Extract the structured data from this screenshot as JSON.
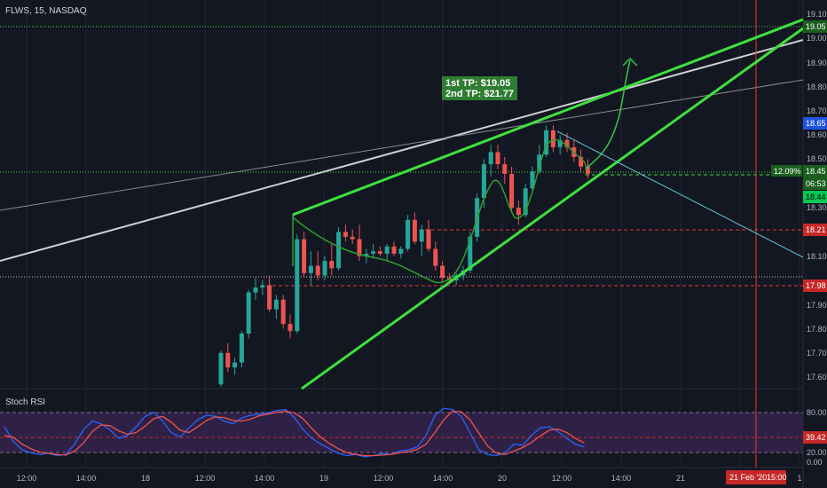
{
  "header": {
    "symbol_line": "FLWS, 15, NASDAQ"
  },
  "colors": {
    "background": "#131722",
    "grid": "#1f2532",
    "candle_up": "#26a69a",
    "candle_down": "#ef5350",
    "trendline_green": "#3ee03e",
    "channel_white": "#cfcfcf",
    "target_line": "#5fc6d8",
    "red_line": "#e53935",
    "rsi_k": "#2962ff",
    "rsi_d": "#ef5350",
    "rsi_band": "#3a2451"
  },
  "annotation": {
    "line1": "1st TP: $19.05",
    "line2": "2nd TP: $21.77",
    "color": "#2e7d32"
  },
  "price_axis": {
    "ticks": [
      "19.10",
      "19.00",
      "18.90",
      "18.80",
      "18.70",
      "18.60",
      "18.50",
      "18.30",
      "18.10",
      "17.90",
      "17.80",
      "17.70",
      "17.60"
    ],
    "labels": [
      {
        "text": "19.05",
        "bg": "#1b5e20",
        "fg": "#ffffff"
      },
      {
        "text": "18.65",
        "bg": "#1e54e0",
        "fg": "#ffffff"
      },
      {
        "text": "18.45",
        "bg": "#1b5e20",
        "fg": "#ffffff"
      },
      {
        "text": "06:53",
        "bg": "#1b5e20",
        "fg": "#ffffff"
      },
      {
        "text": "18.44",
        "bg": "#00c853",
        "fg": "#000000"
      },
      {
        "text": "18.21",
        "bg": "#c62828",
        "fg": "#ffffff"
      },
      {
        "text": "17.98",
        "bg": "#c62828",
        "fg": "#ffffff"
      }
    ],
    "percent_label": "12.09%"
  },
  "time_axis": {
    "ticks": [
      "12:00",
      "14:00",
      "18",
      "12:00",
      "14:00",
      "19",
      "12:00",
      "14:00",
      "20",
      "12:00",
      "14:00",
      "21",
      "12:00",
      "1"
    ],
    "cursor_date": "21 Feb '20",
    "cursor_time": "15:00"
  },
  "rsi": {
    "title": "Stoch RSI",
    "ticks": [
      "80.00",
      "20.00",
      "0.00"
    ],
    "current": "39.42",
    "upper": 80,
    "lower": 20
  },
  "chart_data": {
    "type": "candlestick",
    "ylim": [
      17.55,
      19.12
    ],
    "candles": [
      [
        17.57,
        17.71,
        17.56,
        17.7
      ],
      [
        17.7,
        17.74,
        17.62,
        17.64
      ],
      [
        17.64,
        17.68,
        17.61,
        17.66
      ],
      [
        17.66,
        17.79,
        17.64,
        17.78
      ],
      [
        17.78,
        17.96,
        17.76,
        17.95
      ],
      [
        17.95,
        18.01,
        17.92,
        17.97
      ],
      [
        17.97,
        18.0,
        17.94,
        17.98
      ],
      [
        17.98,
        18.02,
        17.87,
        17.88
      ],
      [
        17.88,
        17.94,
        17.84,
        17.92
      ],
      [
        17.92,
        17.94,
        17.8,
        17.82
      ],
      [
        17.82,
        17.86,
        17.76,
        17.79
      ],
      [
        17.79,
        18.19,
        17.78,
        18.17
      ],
      [
        18.17,
        18.2,
        18.01,
        18.03
      ],
      [
        18.03,
        18.12,
        17.98,
        18.06
      ],
      [
        18.06,
        18.12,
        18.0,
        18.02
      ],
      [
        18.02,
        18.1,
        18.0,
        18.08
      ],
      [
        18.08,
        18.15,
        18.02,
        18.05
      ],
      [
        18.05,
        18.22,
        18.04,
        18.2
      ],
      [
        18.2,
        18.23,
        18.16,
        18.18
      ],
      [
        18.18,
        18.21,
        18.15,
        18.17
      ],
      [
        18.17,
        18.23,
        18.08,
        18.1
      ],
      [
        18.1,
        18.13,
        18.07,
        18.11
      ],
      [
        18.11,
        18.15,
        18.09,
        18.12
      ],
      [
        18.12,
        18.14,
        18.1,
        18.11
      ],
      [
        18.11,
        18.15,
        18.08,
        18.14
      ],
      [
        18.14,
        18.16,
        18.1,
        18.11
      ],
      [
        18.11,
        18.14,
        18.09,
        18.13
      ],
      [
        18.13,
        18.27,
        18.12,
        18.25
      ],
      [
        18.25,
        18.28,
        18.15,
        18.16
      ],
      [
        18.16,
        18.23,
        18.1,
        18.21
      ],
      [
        18.21,
        18.25,
        18.12,
        18.13
      ],
      [
        18.13,
        18.16,
        18.04,
        18.06
      ],
      [
        18.06,
        18.08,
        17.99,
        18.01
      ],
      [
        18.01,
        18.03,
        17.99,
        18.0
      ],
      [
        18.0,
        18.03,
        17.98,
        18.02
      ],
      [
        18.02,
        18.06,
        18.0,
        18.04
      ],
      [
        18.04,
        18.2,
        18.03,
        18.18
      ],
      [
        18.18,
        18.36,
        18.16,
        18.34
      ],
      [
        18.34,
        18.5,
        18.3,
        18.48
      ],
      [
        18.48,
        18.56,
        18.43,
        18.53
      ],
      [
        18.53,
        18.56,
        18.46,
        18.48
      ],
      [
        18.48,
        18.51,
        18.4,
        18.44
      ],
      [
        18.44,
        18.47,
        18.28,
        18.3
      ],
      [
        18.3,
        18.33,
        18.23,
        18.27
      ],
      [
        18.27,
        18.4,
        18.26,
        18.38
      ],
      [
        18.38,
        18.47,
        18.37,
        18.45
      ],
      [
        18.45,
        18.56,
        18.44,
        18.52
      ],
      [
        18.52,
        18.64,
        18.51,
        18.62
      ],
      [
        18.62,
        18.64,
        18.53,
        18.55
      ],
      [
        18.55,
        18.6,
        18.52,
        18.58
      ],
      [
        18.58,
        18.61,
        18.53,
        18.55
      ],
      [
        18.55,
        18.58,
        18.49,
        18.51
      ],
      [
        18.51,
        18.54,
        18.45,
        18.47
      ],
      [
        18.47,
        18.5,
        18.42,
        18.44
      ]
    ],
    "levels": [
      19.05,
      18.45,
      18.21,
      17.98
    ],
    "rsi_k": [
      60,
      35,
      20,
      15,
      12,
      14,
      10,
      12,
      30,
      55,
      70,
      65,
      55,
      40,
      45,
      60,
      78,
      85,
      70,
      50,
      42,
      58,
      72,
      80,
      78,
      70,
      65,
      75,
      80,
      82,
      84,
      88,
      90,
      76,
      55,
      40,
      30,
      22,
      14,
      10,
      12,
      8,
      10,
      14,
      12,
      18,
      20,
      25,
      45,
      80,
      92,
      90,
      78,
      50,
      20,
      12,
      10,
      15,
      30,
      28,
      45,
      58,
      60,
      52,
      40,
      30,
      25
    ],
    "rsi_d": [
      45,
      42,
      30,
      22,
      16,
      14,
      12,
      11,
      18,
      32,
      52,
      63,
      62,
      53,
      47,
      50,
      61,
      74,
      78,
      68,
      54,
      50,
      60,
      71,
      77,
      76,
      71,
      70,
      73,
      79,
      82,
      85,
      87,
      84,
      74,
      57,
      42,
      31,
      22,
      15,
      12,
      10,
      10,
      11,
      12,
      15,
      17,
      21,
      30,
      50,
      72,
      87,
      86,
      72,
      49,
      27,
      14,
      12,
      18,
      24,
      33,
      44,
      54,
      56,
      50,
      40,
      32
    ]
  }
}
